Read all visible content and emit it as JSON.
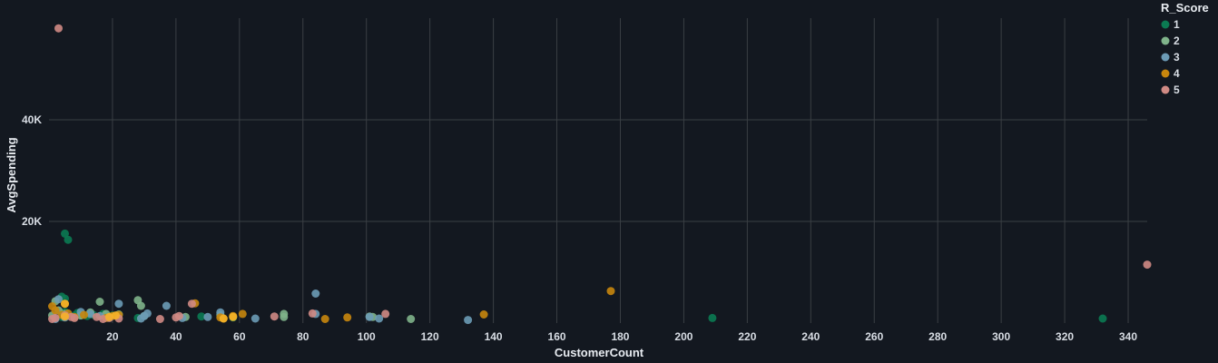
{
  "chart_data": {
    "type": "scatter",
    "xlabel": "CustomerCount",
    "ylabel": "AvgSpending",
    "xlim": [
      0,
      346
    ],
    "ylim": [
      0,
      60000
    ],
    "x_ticks": [
      20,
      40,
      60,
      80,
      100,
      120,
      140,
      160,
      180,
      200,
      220,
      240,
      260,
      280,
      300,
      320,
      340
    ],
    "x_tick_labels": [
      "20",
      "40",
      "60",
      "80",
      "100",
      "120",
      "140",
      "160",
      "180",
      "200",
      "220",
      "240",
      "260",
      "280",
      "300",
      "320",
      "340"
    ],
    "y_ticks": [
      20000,
      40000
    ],
    "y_tick_labels": [
      "20K",
      "40K"
    ],
    "grid": true,
    "legend": {
      "title": "R_Score",
      "placement": "right"
    },
    "series": [
      {
        "name": "1",
        "color": "#0b7a52",
        "points": [
          [
            4,
            1200
          ],
          [
            4,
            5200
          ],
          [
            5,
            2200
          ],
          [
            5,
            4800
          ],
          [
            5,
            17600
          ],
          [
            6,
            16400
          ],
          [
            8,
            1500
          ],
          [
            9,
            2000
          ],
          [
            10,
            1500
          ],
          [
            12,
            1400
          ],
          [
            14,
            1600
          ],
          [
            17,
            1800
          ],
          [
            20,
            1500
          ],
          [
            22,
            1700
          ],
          [
            28,
            1000
          ],
          [
            48,
            1300
          ],
          [
            58,
            1100
          ],
          [
            209,
            1000
          ],
          [
            332,
            900
          ]
        ]
      },
      {
        "name": "2",
        "color": "#7fb38a",
        "points": [
          [
            1,
            1500
          ],
          [
            2,
            4300
          ],
          [
            3,
            2500
          ],
          [
            5,
            1800
          ],
          [
            10,
            1500
          ],
          [
            13,
            2100
          ],
          [
            16,
            4200
          ],
          [
            18,
            1800
          ],
          [
            22,
            1700
          ],
          [
            28,
            4500
          ],
          [
            29,
            3400
          ],
          [
            30,
            1400
          ],
          [
            43,
            1200
          ],
          [
            54,
            1600
          ],
          [
            58,
            1300
          ],
          [
            74,
            1200
          ],
          [
            74,
            1800
          ],
          [
            101,
            1300
          ],
          [
            102,
            1200
          ],
          [
            114,
            800
          ]
        ]
      },
      {
        "name": "3",
        "color": "#6c9bb5",
        "points": [
          [
            2,
            800
          ],
          [
            3,
            4700
          ],
          [
            5,
            1100
          ],
          [
            10,
            2200
          ],
          [
            13,
            1800
          ],
          [
            16,
            1400
          ],
          [
            22,
            3800
          ],
          [
            29,
            900
          ],
          [
            30,
            1400
          ],
          [
            31,
            1900
          ],
          [
            37,
            3400
          ],
          [
            42,
            1000
          ],
          [
            50,
            1200
          ],
          [
            54,
            2100
          ],
          [
            65,
            900
          ],
          [
            84,
            5800
          ],
          [
            84,
            1800
          ],
          [
            101,
            1200
          ],
          [
            104,
            900
          ],
          [
            132,
            600
          ]
        ]
      },
      {
        "name": "4",
        "color": "#c8860d",
        "points": [
          [
            1,
            3300
          ],
          [
            2,
            2500
          ],
          [
            4,
            1600
          ],
          [
            5,
            3800
          ],
          [
            6,
            1900
          ],
          [
            8,
            1200
          ],
          [
            11,
            1600
          ],
          [
            18,
            1000
          ],
          [
            20,
            1400
          ],
          [
            22,
            1600
          ],
          [
            46,
            3900
          ],
          [
            54,
            1100
          ],
          [
            55,
            900
          ],
          [
            58,
            1400
          ],
          [
            61,
            1800
          ],
          [
            87,
            800
          ],
          [
            94,
            1100
          ],
          [
            137,
            1700
          ],
          [
            177,
            6300
          ]
        ]
      },
      {
        "name": "5",
        "color": "#d08a84",
        "points": [
          [
            1,
            800
          ],
          [
            2,
            1000
          ],
          [
            3,
            58000
          ],
          [
            5,
            1500
          ],
          [
            7,
            1200
          ],
          [
            8,
            1000
          ],
          [
            15,
            1200
          ],
          [
            17,
            800
          ],
          [
            19,
            1000
          ],
          [
            22,
            900
          ],
          [
            35,
            800
          ],
          [
            40,
            1100
          ],
          [
            41,
            1400
          ],
          [
            45,
            3800
          ],
          [
            71,
            1300
          ],
          [
            83,
            1900
          ],
          [
            106,
            1800
          ],
          [
            346,
            11500
          ]
        ]
      },
      {
        "name": "",
        "color": "#f5b228",
        "points": [
          [
            5,
            1300
          ],
          [
            19,
            1200
          ],
          [
            55,
            900
          ],
          [
            58,
            1200
          ],
          [
            21,
            1500
          ],
          [
            5,
            3800
          ]
        ]
      }
    ]
  }
}
